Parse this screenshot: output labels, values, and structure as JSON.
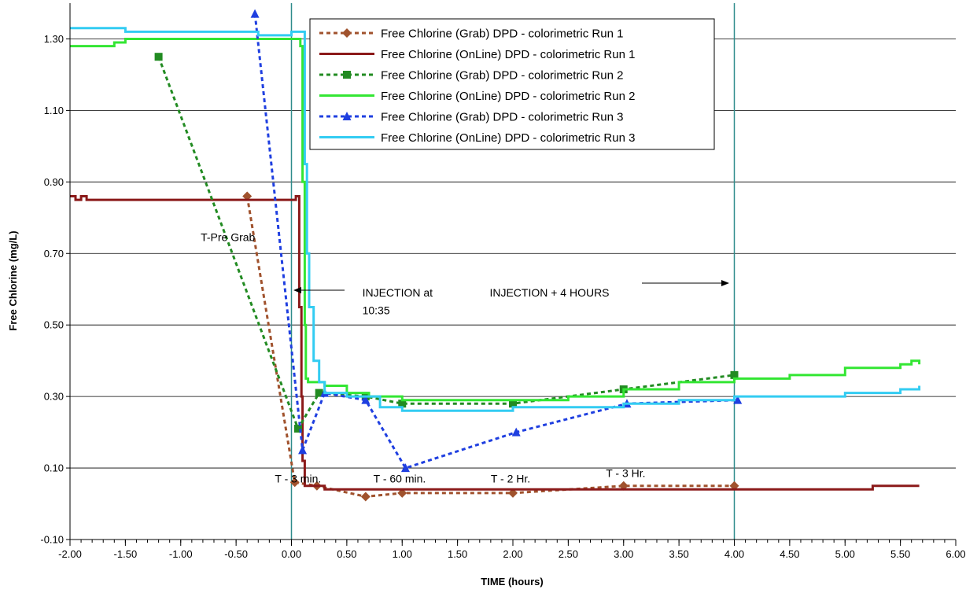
{
  "chart_data": {
    "type": "line",
    "xlabel": "TIME (hours)",
    "ylabel": "Free Chlorine (mg/L)",
    "xlim": [
      -2.0,
      6.0
    ],
    "ylim": [
      -0.1,
      1.4
    ],
    "x_ticks": [
      -2.0,
      -1.5,
      -1.0,
      -0.5,
      0.0,
      0.5,
      1.0,
      1.5,
      2.0,
      2.5,
      3.0,
      3.5,
      4.0,
      4.5,
      5.0,
      5.5,
      6.0
    ],
    "x_tick_labels": [
      "-2.00",
      "-1.50",
      "-1.00",
      "-0.50",
      "0.00",
      "0.50",
      "1.00",
      "1.50",
      "2.00",
      "2.50",
      "3.00",
      "3.50",
      "4.00",
      "4.50",
      "5.00",
      "5.50",
      "6.00"
    ],
    "y_gridlines": [
      -0.1,
      0.1,
      0.3,
      0.5,
      0.7,
      0.9,
      1.1,
      1.3
    ],
    "y_tick_labels": [
      "-0.10",
      "0.10",
      "0.30",
      "0.50",
      "0.70",
      "0.90",
      "1.10",
      "1.30"
    ],
    "grid": "horizontal",
    "legend_position": "top-center",
    "series": [
      {
        "name": "Free Chlorine (Grab) DPD - colorimetric Run 1",
        "style": "dashed",
        "marker": "diamond",
        "color": "#a0522d",
        "x": [
          -0.4,
          0.03,
          0.23,
          0.67,
          1.0,
          2.0,
          3.0,
          4.0
        ],
        "y": [
          0.86,
          0.06,
          0.05,
          0.02,
          0.03,
          0.03,
          0.05,
          0.05
        ]
      },
      {
        "name": "Free Chlorine (OnLine) DPD - colorimetric Run 1",
        "style": "solid",
        "marker": "none",
        "color": "#8b1a1a",
        "x": [
          -2.0,
          -1.95,
          -1.9,
          -1.85,
          -1.8,
          -1.5,
          -1.3,
          -1.0,
          -0.5,
          0.0,
          0.04,
          0.06,
          0.07,
          0.09,
          0.1,
          0.12,
          0.2,
          0.3,
          0.5,
          1.0,
          2.0,
          3.0,
          3.5,
          3.55,
          4.0,
          5.0,
          5.2,
          5.25,
          5.67
        ],
        "y": [
          0.86,
          0.85,
          0.86,
          0.85,
          0.85,
          0.85,
          0.85,
          0.85,
          0.85,
          0.85,
          0.86,
          0.86,
          0.55,
          0.3,
          0.12,
          0.05,
          0.05,
          0.04,
          0.04,
          0.04,
          0.04,
          0.04,
          0.04,
          0.04,
          0.04,
          0.04,
          0.04,
          0.05,
          0.05
        ]
      },
      {
        "name": "Free Chlorine (Grab) DPD - colorimetric Run 2",
        "style": "dashed",
        "marker": "square",
        "color": "#228b22",
        "x": [
          -1.2,
          0.06,
          0.25,
          0.67,
          1.0,
          2.0,
          3.0,
          4.0
        ],
        "y": [
          1.25,
          0.21,
          0.31,
          0.3,
          0.28,
          0.28,
          0.32,
          0.36
        ]
      },
      {
        "name": "Free Chlorine (OnLine) DPD - colorimetric Run 2",
        "style": "solid",
        "marker": "none",
        "color": "#33e633",
        "x": [
          -2.0,
          -1.7,
          -1.6,
          -1.5,
          -1.0,
          -0.5,
          0.0,
          0.05,
          0.08,
          0.1,
          0.12,
          0.13,
          0.15,
          0.2,
          0.3,
          0.5,
          0.7,
          1.0,
          1.5,
          2.0,
          2.5,
          3.0,
          3.5,
          4.0,
          4.3,
          4.5,
          5.0,
          5.5,
          5.6,
          5.67
        ],
        "y": [
          1.28,
          1.28,
          1.29,
          1.3,
          1.3,
          1.3,
          1.3,
          1.3,
          1.28,
          0.9,
          0.5,
          0.35,
          0.34,
          0.34,
          0.33,
          0.31,
          0.3,
          0.29,
          0.29,
          0.29,
          0.3,
          0.32,
          0.34,
          0.35,
          0.35,
          0.36,
          0.38,
          0.39,
          0.4,
          0.39
        ]
      },
      {
        "name": "Free Chlorine (Grab) DPD - colorimetric Run 3",
        "style": "dashed",
        "marker": "triangle",
        "color": "#1f3fe0",
        "x": [
          -0.33,
          0.1,
          0.3,
          0.67,
          1.03,
          2.03,
          3.03,
          4.03
        ],
        "y": [
          1.37,
          0.15,
          0.31,
          0.29,
          0.1,
          0.2,
          0.28,
          0.29
        ]
      },
      {
        "name": "Free Chlorine (OnLine) DPD - colorimetric Run 3",
        "style": "solid",
        "marker": "none",
        "color": "#33ccf2",
        "x": [
          -2.0,
          -1.8,
          -1.5,
          -1.0,
          -0.5,
          -0.3,
          0.0,
          0.1,
          0.12,
          0.14,
          0.16,
          0.2,
          0.25,
          0.3,
          0.5,
          0.8,
          1.0,
          1.5,
          2.0,
          2.5,
          3.0,
          3.5,
          4.0,
          4.5,
          5.0,
          5.5,
          5.67
        ],
        "y": [
          1.33,
          1.33,
          1.32,
          1.32,
          1.32,
          1.31,
          1.32,
          1.32,
          0.95,
          0.7,
          0.55,
          0.4,
          0.34,
          0.31,
          0.3,
          0.27,
          0.26,
          0.26,
          0.27,
          0.27,
          0.28,
          0.29,
          0.3,
          0.3,
          0.31,
          0.32,
          0.33
        ]
      }
    ],
    "vertical_lines": [
      0.0,
      4.0
    ],
    "annotations": [
      {
        "text": "T-Pre Grab",
        "x": -0.82,
        "y": 0.735
      },
      {
        "text": "INJECTION at",
        "x": 0.64,
        "y": 0.58
      },
      {
        "text": "10:35",
        "x": 0.64,
        "y": 0.53
      },
      {
        "text": "INJECTION + 4 HOURS",
        "x": 1.79,
        "y": 0.58
      },
      {
        "text": "T - 3 min.",
        "x": -0.15,
        "y": 0.06
      },
      {
        "text": "T - 60 min.",
        "x": 0.74,
        "y": 0.06
      },
      {
        "text": "T - 2 Hr.",
        "x": 1.8,
        "y": 0.06
      },
      {
        "text": "T - 3 Hr.",
        "x": 2.84,
        "y": 0.075
      }
    ]
  }
}
